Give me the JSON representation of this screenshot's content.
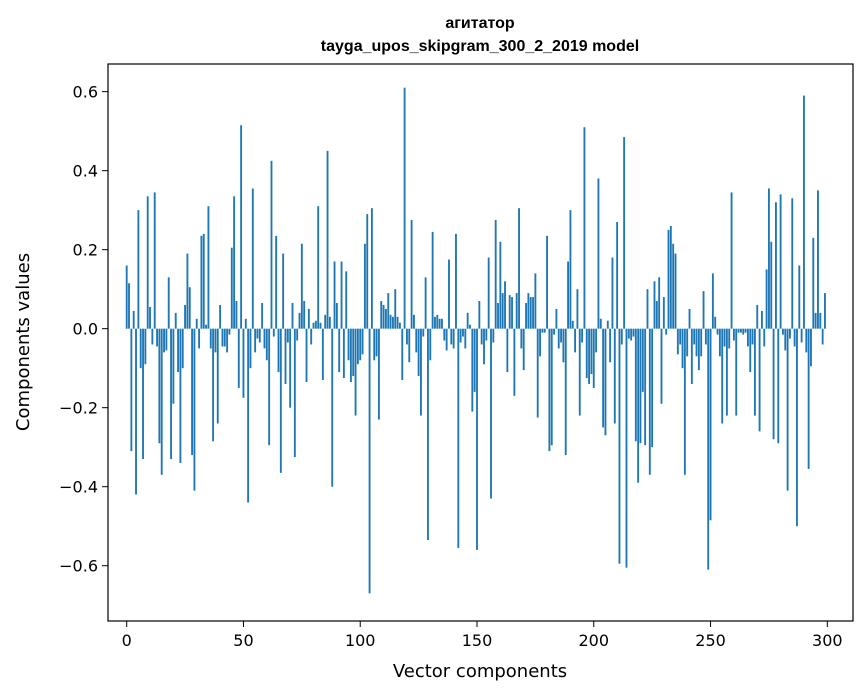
{
  "chart_data": {
    "type": "bar",
    "title": "агитатор",
    "subtitle": "tayga_upos_skipgram_300_2_2019 model",
    "xlabel": "Vector components",
    "ylabel": "Components values",
    "xlim": [
      -8,
      311
    ],
    "ylim": [
      -0.74,
      0.67
    ],
    "xticks": [
      0,
      50,
      100,
      150,
      200,
      250,
      300
    ],
    "yticks": [
      -0.6,
      -0.4,
      -0.2,
      0.0,
      0.2,
      0.4,
      0.6
    ],
    "ytick_labels": [
      "−0.6",
      "−0.4",
      "−0.2",
      "0.0",
      "0.2",
      "0.4",
      "0.6"
    ],
    "grid": false,
    "bar_color": "#1f77b4",
    "values": [
      0.16,
      0.115,
      -0.31,
      0.045,
      -0.42,
      0.3,
      -0.1,
      -0.33,
      -0.09,
      0.335,
      0.055,
      -0.04,
      0.345,
      -0.045,
      -0.29,
      -0.37,
      -0.06,
      -0.055,
      0.13,
      -0.33,
      -0.19,
      0.04,
      -0.11,
      -0.34,
      -0.1,
      0.06,
      0.19,
      0.105,
      -0.32,
      -0.41,
      0.025,
      -0.05,
      0.235,
      0.24,
      0.01,
      0.31,
      -0.05,
      -0.285,
      -0.06,
      -0.24,
      0.06,
      -0.045,
      -0.045,
      -0.06,
      -0.015,
      0.205,
      0.335,
      0.07,
      -0.15,
      0.515,
      -0.175,
      0.025,
      -0.44,
      -0.1,
      0.355,
      -0.06,
      -0.025,
      -0.035,
      0.065,
      -0.05,
      -0.08,
      -0.295,
      0.425,
      -0.02,
      0.235,
      -0.11,
      -0.365,
      0.19,
      -0.14,
      -0.035,
      -0.2,
      0.065,
      -0.325,
      -0.03,
      0.04,
      0.215,
      0.07,
      -0.135,
      0.05,
      -0.04,
      0.015,
      0.02,
      0.31,
      0.015,
      -0.13,
      0.035,
      0.45,
      0.03,
      -0.4,
      0.17,
      0.065,
      -0.11,
      0.17,
      -0.125,
      0.145,
      -0.08,
      -0.135,
      -0.12,
      -0.22,
      -0.09,
      -0.08,
      -0.065,
      0.215,
      0.29,
      -0.67,
      0.305,
      -0.08,
      -0.07,
      -0.23,
      0.07,
      0.06,
      0.05,
      0.09,
      0.035,
      0.03,
      0.1,
      0.03,
      0.015,
      -0.13,
      0.61,
      -0.04,
      -0.085,
      0.275,
      0.035,
      -0.06,
      -0.12,
      -0.22,
      -0.02,
      0.13,
      -0.535,
      -0.08,
      0.245,
      0.03,
      0.035,
      0.025,
      0.025,
      -0.03,
      -0.055,
      0.175,
      -0.04,
      -0.05,
      0.24,
      -0.555,
      -0.035,
      -0.02,
      -0.05,
      0.04,
      0.01,
      -0.21,
      -0.16,
      -0.56,
      0.07,
      -0.04,
      -0.09,
      -0.03,
      0.18,
      -0.43,
      -0.035,
      0.275,
      0.065,
      0.22,
      0.09,
      0.12,
      -0.11,
      0.085,
      0.08,
      -0.17,
      0.09,
      0.305,
      -0.05,
      -0.105,
      0.065,
      0.09,
      0.08,
      0.08,
      0.14,
      -0.225,
      -0.07,
      -0.01,
      -0.01,
      0.235,
      -0.31,
      -0.295,
      -0.015,
      0.05,
      -0.05,
      -0.035,
      -0.085,
      -0.32,
      0.17,
      0.3,
      0.02,
      -0.06,
      0.1,
      -0.22,
      -0.035,
      0.51,
      -0.125,
      -0.14,
      -0.115,
      -0.15,
      -0.06,
      0.38,
      0.025,
      -0.25,
      -0.27,
      0.02,
      -0.085,
      0.18,
      -0.24,
      0.27,
      -0.595,
      -0.04,
      0.485,
      -0.605,
      -0.025,
      -0.03,
      -0.02,
      -0.285,
      -0.39,
      -0.29,
      -0.16,
      -0.295,
      0.1,
      -0.37,
      -0.3,
      0.12,
      0.07,
      0.13,
      -0.19,
      0.08,
      -0.015,
      0.25,
      0.26,
      0.215,
      0.19,
      -0.065,
      -0.04,
      -0.1,
      -0.37,
      -0.07,
      0.05,
      -0.14,
      -0.04,
      -0.07,
      -0.105,
      -0.07,
      0.095,
      -0.04,
      -0.61,
      -0.485,
      0.14,
      0.03,
      -0.015,
      -0.07,
      -0.24,
      -0.045,
      -0.22,
      -0.05,
      0.345,
      -0.03,
      -0.22,
      -0.01,
      -0.01,
      -0.015,
      -0.01,
      -0.045,
      -0.11,
      -0.04,
      -0.22,
      0.06,
      -0.26,
      0.045,
      -0.045,
      0.15,
      0.355,
      0.22,
      -0.28,
      0.32,
      -0.29,
      0.34,
      -0.015,
      -0.055,
      -0.41,
      -0.025,
      0.33,
      -0.045,
      -0.5,
      0.16,
      -0.035,
      0.59,
      -0.06,
      -0.355,
      -0.095,
      0.23,
      0.04,
      0.35,
      0.04,
      -0.04,
      0.09
    ]
  }
}
